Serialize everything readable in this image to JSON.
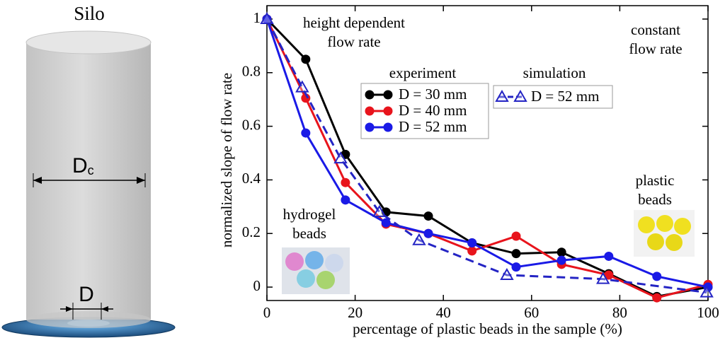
{
  "diagram": {
    "title": "Silo",
    "container_diameter": {
      "main": "D",
      "sub": "c"
    },
    "outlet_diameter": "D"
  },
  "chart_data": {
    "type": "line",
    "x_label": "percentage of plastic beads in the sample (%)",
    "y_label": "normalized slope of flow rate",
    "xlim": [
      0,
      100
    ],
    "xticks": [
      0,
      20,
      40,
      60,
      80,
      100
    ],
    "ylim": [
      -0.05,
      1.05
    ],
    "yticks": [
      0,
      0.2,
      0.4,
      0.6,
      0.8,
      1
    ],
    "legend_titles": [
      "experiment",
      "simulation"
    ],
    "series": [
      {
        "name": "D = 30 mm",
        "color": "#000000",
        "marker": "circle",
        "dashed": false,
        "x": [
          0,
          8.8,
          17.8,
          27,
          36.6,
          46.5,
          56.5,
          66.8,
          77.5,
          88.4,
          100
        ],
        "values": [
          1,
          0.85,
          0.495,
          0.28,
          0.265,
          0.165,
          0.125,
          0.13,
          0.05,
          -0.035,
          0
        ]
      },
      {
        "name": "D = 40 mm",
        "color": "#e8141c",
        "marker": "circle",
        "dashed": false,
        "x": [
          0,
          8.8,
          17.8,
          27,
          36.6,
          46.5,
          56.5,
          66.8,
          77.5,
          88.4,
          100
        ],
        "values": [
          1,
          0.705,
          0.39,
          0.235,
          0.2,
          0.135,
          0.19,
          0.085,
          0.045,
          -0.04,
          0.01
        ]
      },
      {
        "name": "D = 52 mm",
        "color": "#1a1ae6",
        "marker": "circle",
        "dashed": false,
        "x": [
          0,
          8.8,
          17.8,
          27,
          36.6,
          46.5,
          56.5,
          66.8,
          77.5,
          88.4,
          100
        ],
        "values": [
          1,
          0.575,
          0.325,
          0.24,
          0.2,
          0.165,
          0.075,
          0.1,
          0.115,
          0.04,
          0
        ]
      },
      {
        "name": "D = 52 mm",
        "color": "#2424c4",
        "marker": "triangle",
        "dashed": true,
        "x": [
          0,
          8,
          16.7,
          25.5,
          34.5,
          54.4,
          76.2,
          99.7
        ],
        "values": [
          1,
          0.745,
          0.48,
          0.28,
          0.175,
          0.045,
          0.03,
          -0.02
        ]
      }
    ],
    "annotations": [
      {
        "lines": [
          "height dependent",
          "flow rate"
        ]
      },
      {
        "lines": [
          "constant",
          "flow rate"
        ]
      },
      {
        "lines": [
          "plastic",
          "beads"
        ]
      },
      {
        "lines": [
          "hydrogel",
          "beads"
        ]
      }
    ]
  }
}
